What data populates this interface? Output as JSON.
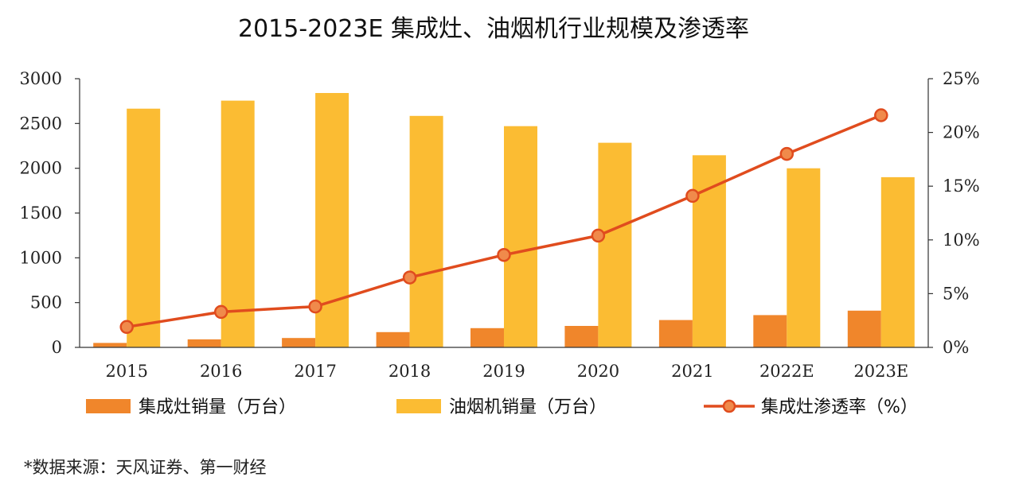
{
  "chart_data": {
    "type": "bar",
    "title": "2015-2023E 集成灶、油烟机行业规模及渗透率",
    "categories": [
      "2015",
      "2016",
      "2017",
      "2018",
      "2019",
      "2020",
      "2021",
      "2022E",
      "2023E"
    ],
    "series": [
      {
        "name": "集成灶销量（万台）",
        "type": "bar",
        "axis": "left",
        "color": "#f0862b",
        "values": [
          50,
          90,
          105,
          170,
          215,
          240,
          305,
          360,
          410
        ]
      },
      {
        "name": "油烟机销量（万台）",
        "type": "bar",
        "axis": "left",
        "color": "#fbbc33",
        "values": [
          2665,
          2755,
          2840,
          2585,
          2470,
          2285,
          2145,
          2000,
          1900
        ]
      },
      {
        "name": "集成灶渗透率（%）",
        "type": "line",
        "axis": "right",
        "color": "#e04c1e",
        "marker_fill": "#f08a4b",
        "values": [
          1.9,
          3.3,
          3.8,
          6.5,
          8.6,
          10.4,
          14.1,
          18.0,
          21.6
        ]
      }
    ],
    "y_left": {
      "min": 0,
      "max": 3000,
      "ticks": [
        0,
        500,
        1000,
        1500,
        2000,
        2500,
        3000
      ]
    },
    "y_right": {
      "min": 0,
      "max": 25,
      "ticks": [
        0,
        5,
        10,
        15,
        20,
        25
      ],
      "suffix": "%"
    },
    "grid": false,
    "legend_position": "bottom"
  },
  "source_note": "*数据来源：天风证券、第一财经"
}
